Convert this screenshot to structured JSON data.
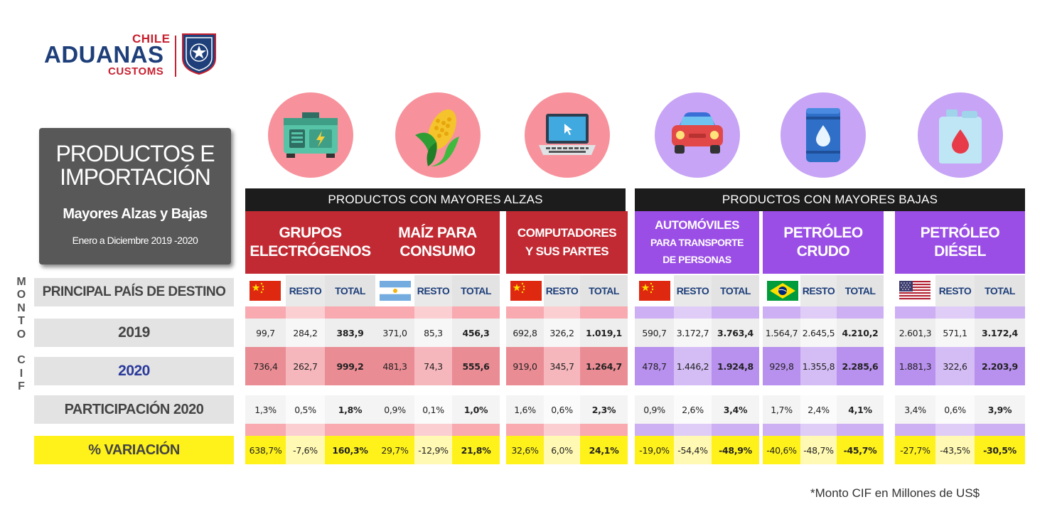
{
  "logo": {
    "chile": "CHILE",
    "aduanas": "ADUANAS",
    "customs": "CUSTOMS"
  },
  "title": {
    "line1": "PRODUCTOS E",
    "line2": "IMPORTACIÓN",
    "subtitle": "Mayores Alzas y Bajas",
    "period": "Enero a Diciembre 2019 -2020"
  },
  "side_label": [
    "M",
    "O",
    "N",
    "T",
    "O",
    "",
    "C",
    "I",
    "F"
  ],
  "row_labels": {
    "country": "PRINCIPAL PAÍS DE DESTINO",
    "y2019": "2019",
    "y2020": "2020",
    "share": "PARTICIPACIÓN 2020",
    "variation": "% VARIACIÓN"
  },
  "sections": {
    "up": "PRODUCTOS CON MAYORES ALZAS",
    "down": "PRODUCTOS CON MAYORES BAJAS"
  },
  "column_labels": {
    "resto": "RESTO",
    "total": "TOTAL"
  },
  "footnote": "*Monto CIF en Millones de US$",
  "colors": {
    "red_header": "#c22a33",
    "purple_header": "#9a4ee6",
    "variation_yellow": "#fff21a",
    "red_icon_bg": "#f7929c",
    "purple_icon_bg": "#c7a4f5"
  },
  "chart_data": {
    "type": "table",
    "unit": "Monto CIF en Millones de US$",
    "columns": [
      "País principal",
      "Resto",
      "Total"
    ],
    "products": [
      {
        "name_lines": [
          "GRUPOS",
          "ELECTRÓGENOS"
        ],
        "group": "up",
        "icon": "generator-icon",
        "country_flag": "china-flag",
        "y2019": [
          "99,7",
          "284,2",
          "383,9"
        ],
        "y2020": [
          "736,4",
          "262,7",
          "999,2"
        ],
        "share": [
          "1,3%",
          "0,5%",
          "1,8%"
        ],
        "variation": [
          "638,7%",
          "-7,6%",
          "160,3%"
        ]
      },
      {
        "name_lines": [
          "MAÍZ PARA",
          "CONSUMO"
        ],
        "group": "up",
        "icon": "corn-icon",
        "country_flag": "argentina-flag",
        "y2019": [
          "371,0",
          "85,3",
          "456,3"
        ],
        "y2020": [
          "481,3",
          "74,3",
          "555,6"
        ],
        "share": [
          "0,9%",
          "0,1%",
          "1,0%"
        ],
        "variation": [
          "29,7%",
          "-12,9%",
          "21,8%"
        ]
      },
      {
        "name_lines": [
          "COMPUTADORES",
          "Y SUS PARTES"
        ],
        "group": "up",
        "icon": "laptop-icon",
        "country_flag": "china-flag",
        "y2019": [
          "692,8",
          "326,2",
          "1.019,1"
        ],
        "y2020": [
          "919,0",
          "345,7",
          "1.264,7"
        ],
        "share": [
          "1,6%",
          "0,6%",
          "2,3%"
        ],
        "variation": [
          "32,6%",
          "6,0%",
          "24,1%"
        ]
      },
      {
        "name_lines": [
          "AUTOMÓVILES",
          "PARA TRANSPORTE",
          "DE PERSONAS"
        ],
        "group": "down",
        "icon": "car-icon",
        "country_flag": "china-flag",
        "y2019": [
          "590,7",
          "3.172,7",
          "3.763,4"
        ],
        "y2020": [
          "478,7",
          "1.446,2",
          "1.924,8"
        ],
        "share": [
          "0,9%",
          "2,6%",
          "3,4%"
        ],
        "variation": [
          "-19,0%",
          "-54,4%",
          "-48,9%"
        ]
      },
      {
        "name_lines": [
          "PETRÓLEO",
          "CRUDO"
        ],
        "group": "down",
        "icon": "oil-barrel-icon",
        "country_flag": "brazil-flag",
        "y2019": [
          "1.564,7",
          "2.645,5",
          "4.210,2"
        ],
        "y2020": [
          "929,8",
          "1.355,8",
          "2.285,6"
        ],
        "share": [
          "1,7%",
          "2,4%",
          "4,1%"
        ],
        "variation": [
          "-40,6%",
          "-48,7%",
          "-45,7%"
        ]
      },
      {
        "name_lines": [
          "PETRÓLEO",
          "DIÉSEL"
        ],
        "group": "down",
        "icon": "fuel-canister-icon",
        "country_flag": "usa-flag",
        "y2019": [
          "2.601,3",
          "571,1",
          "3.172,4"
        ],
        "y2020": [
          "1.881,3",
          "322,6",
          "2.203,9"
        ],
        "share": [
          "3,4%",
          "0,6%",
          "3,9%"
        ],
        "variation": [
          "-27,7%",
          "-43,5%",
          "-30,5%"
        ]
      }
    ]
  }
}
